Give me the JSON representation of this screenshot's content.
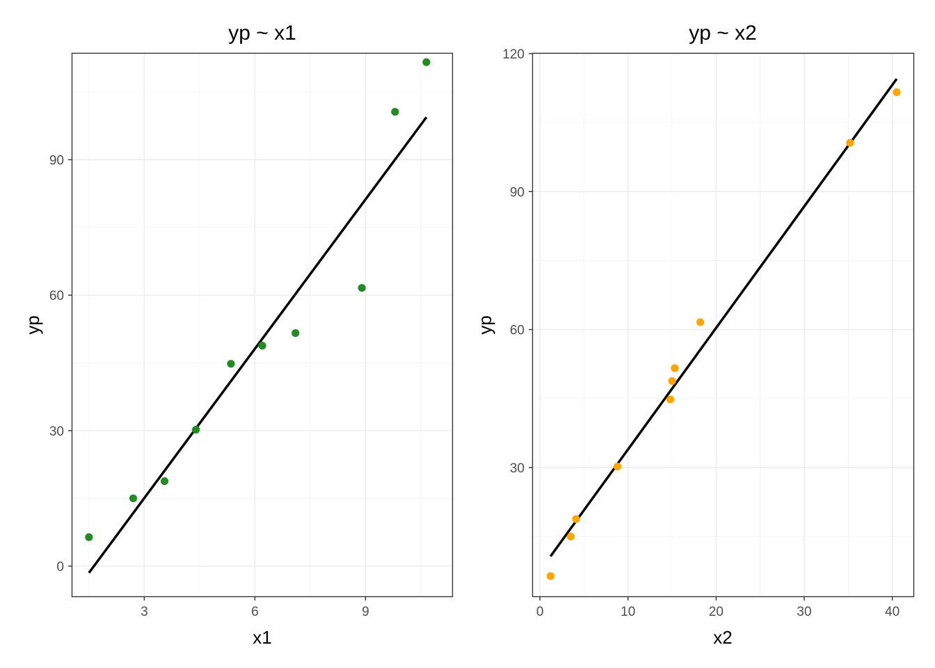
{
  "chart_data": [
    {
      "type": "scatter",
      "title": "yp ~ x1",
      "xlabel": "x1",
      "ylabel": "yp",
      "xlim": [
        1.05,
        11.35
      ],
      "ylim": [
        -6.7,
        113.5
      ],
      "xticks": [
        3,
        6,
        9
      ],
      "yticks": [
        0,
        30,
        60,
        90
      ],
      "grid": true,
      "point_color": "#228b22",
      "line_color": "#000000",
      "series": [
        {
          "x": [
            1.5,
            2.7,
            3.55,
            4.4,
            5.35,
            6.2,
            7.1,
            8.9,
            9.8,
            10.65
          ],
          "y": [
            6.4,
            15.0,
            18.8,
            30.2,
            44.8,
            48.8,
            51.6,
            61.6,
            100.6,
            111.6
          ]
        }
      ],
      "fit_line": {
        "x": [
          1.5,
          10.65
        ],
        "y": [
          -1.5,
          99.4
        ]
      }
    },
    {
      "type": "scatter",
      "title": "yp ~ x2",
      "xlabel": "x2",
      "ylabel": "yp",
      "xlim": [
        -0.8,
        42.4
      ],
      "ylim": [
        2.0,
        120.0
      ],
      "xticks": [
        0,
        10,
        20,
        30,
        40
      ],
      "yticks": [
        30,
        60,
        90,
        120
      ],
      "grid": true,
      "point_color": "#ffa500",
      "line_color": "#000000",
      "series": [
        {
          "x": [
            1.2,
            3.5,
            4.1,
            8.8,
            14.8,
            15.0,
            15.3,
            18.2,
            35.2,
            40.5
          ],
          "y": [
            6.4,
            15.0,
            18.8,
            30.2,
            44.8,
            48.8,
            51.6,
            61.6,
            100.6,
            111.6
          ]
        }
      ],
      "fit_line": {
        "x": [
          1.2,
          40.5
        ],
        "y": [
          10.7,
          114.5
        ]
      }
    }
  ]
}
